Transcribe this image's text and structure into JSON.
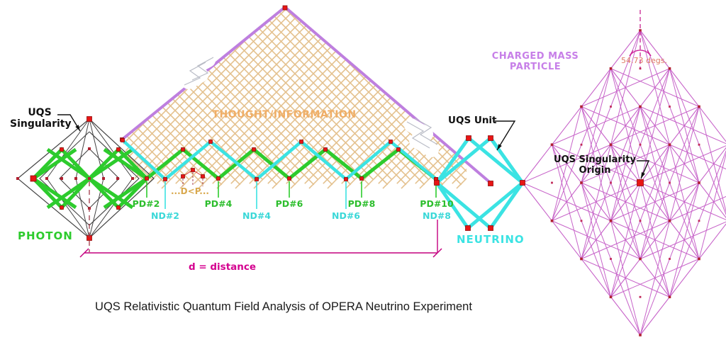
{
  "title": "UQS Relativistic Quantum Field Analysis of OPERA Neutrino Experiment",
  "labels": {
    "uqs_singularity_1": "UQS",
    "uqs_singularity_2": "Singularity",
    "photon": "PHOTON",
    "thought_information": "THOUGHT/INFORMATION",
    "uqs_unit": "UQS Unit",
    "neutrino": "NEUTRINO",
    "charged_mass_1": "CHARGED MASS",
    "charged_mass_2": "PARTICLE",
    "origin_1": "UQS Singularity",
    "origin_2": "Origin",
    "angle_value": "54.73 degs.",
    "d_less_p": "...D<P...",
    "distance": "d = distance"
  },
  "detectors": {
    "pd": [
      "PD#2",
      "PD#4",
      "PD#6",
      "PD#8",
      "PD#10"
    ],
    "nd": [
      "ND#2",
      "ND#4",
      "ND#6",
      "ND#8"
    ]
  },
  "colors": {
    "photon_green": "#2DCB2D",
    "neutrino_cyan": "#3BE3E3",
    "triangle_purple": "#BE7FDF",
    "lattice_tan": "#E4C18E",
    "thought_text": "#F0AE66",
    "mass_lattice_magenta": "#C763C9",
    "node_red": "#E81515",
    "node_dark": "#B02030",
    "measure_magenta": "#C4007F",
    "maroon_dash": "#A03848",
    "charged_text": "#C77FE8",
    "angle_text": "#DE7A64",
    "dlp_text": "#D9A94F",
    "label_black": "#111111"
  }
}
